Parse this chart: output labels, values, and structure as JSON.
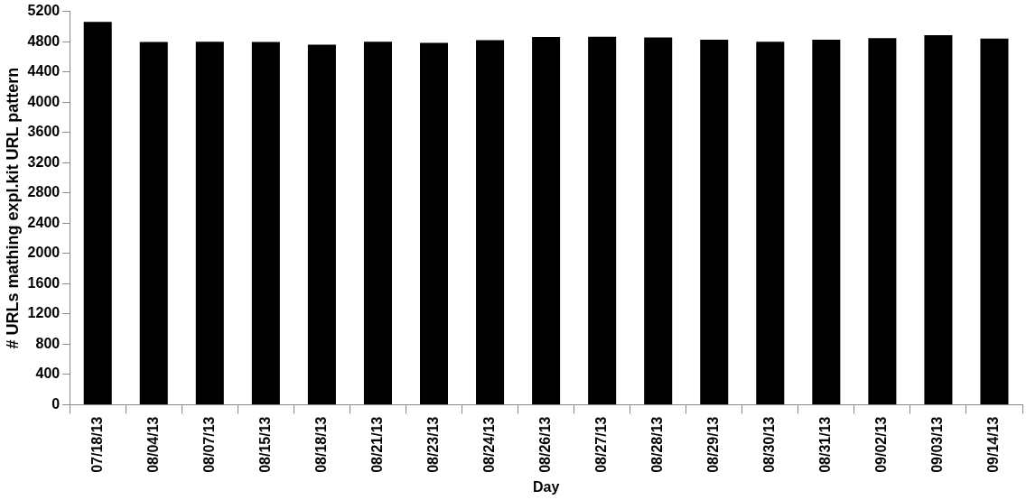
{
  "chart_data": {
    "type": "bar",
    "xlabel": "Day",
    "ylabel": "# URLs mathing expl.kit URL pattern",
    "categories": [
      "07/18/13",
      "08/04/13",
      "08/07/13",
      "08/15/13",
      "08/18/13",
      "08/21/13",
      "08/23/13",
      "08/24/13",
      "08/26/13",
      "08/27/13",
      "08/28/13",
      "08/29/13",
      "08/30/13",
      "08/31/13",
      "09/02/13",
      "09/03/13",
      "09/14/13"
    ],
    "values": [
      5060,
      4795,
      4800,
      4795,
      4760,
      4800,
      4785,
      4820,
      4860,
      4865,
      4855,
      4825,
      4800,
      4825,
      4845,
      4885,
      4840
    ],
    "color": "#000000",
    "ylim": [
      0,
      5200
    ],
    "yticks": [
      0,
      400,
      800,
      1200,
      1600,
      2000,
      2400,
      2800,
      3200,
      3600,
      4000,
      4400,
      4800,
      5200
    ],
    "grid": false,
    "legend": false
  }
}
